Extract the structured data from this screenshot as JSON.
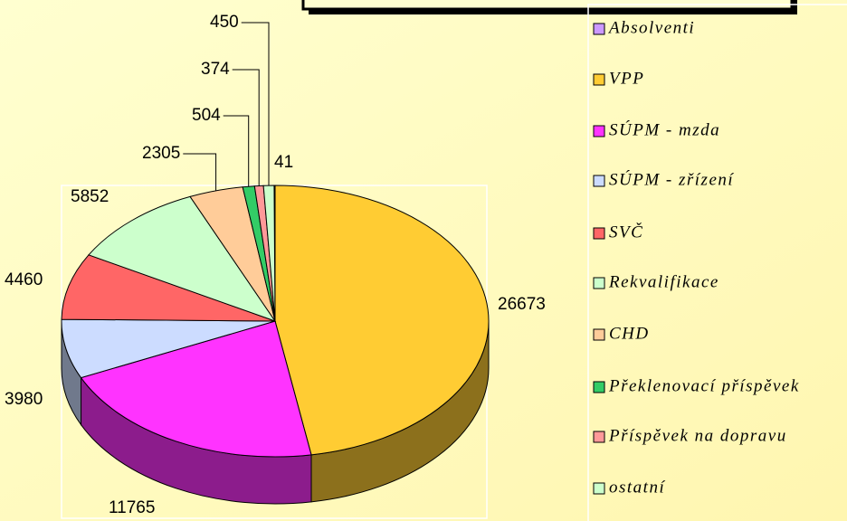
{
  "chart_data": {
    "type": "pie",
    "categories": [
      "Absolventi",
      "VPP",
      "SÚPM - mzda",
      "SÚPM - zřízení",
      "SVČ",
      "Rekvalifikace",
      "CHD",
      "Překlenovací příspěvek",
      "Příspěvek na dopravu",
      "ostatní"
    ],
    "values": [
      41,
      26673,
      11765,
      3980,
      4460,
      5852,
      2305,
      504,
      374,
      450
    ],
    "colors": [
      "#cc99ff",
      "#ffcc33",
      "#ff33ff",
      "#ccdcff",
      "#ff6666",
      "#ccffcc",
      "#ffcc99",
      "#33cc66",
      "#ff9999",
      "#ccffcc"
    ],
    "legend": "right"
  }
}
